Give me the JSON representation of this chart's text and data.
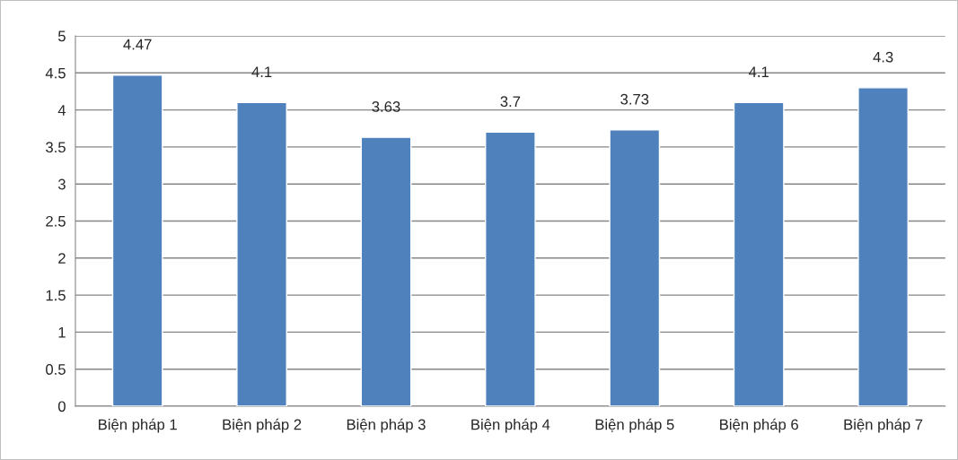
{
  "chart_data": {
    "type": "bar",
    "categories": [
      "Biện pháp 1",
      "Biện pháp 2",
      "Biện pháp 3",
      "Biện pháp 4",
      "Biện pháp 5",
      "Biện pháp 6",
      "Biện pháp 7"
    ],
    "values": [
      4.47,
      4.1,
      3.63,
      3.7,
      3.73,
      4.1,
      4.3
    ],
    "color": "#4f81bd",
    "ylim": [
      0,
      5
    ],
    "yticks": [
      0,
      0.5,
      1,
      1.5,
      2,
      2.5,
      3,
      3.5,
      4,
      4.5,
      5
    ],
    "grid": "y",
    "data_labels": true
  }
}
